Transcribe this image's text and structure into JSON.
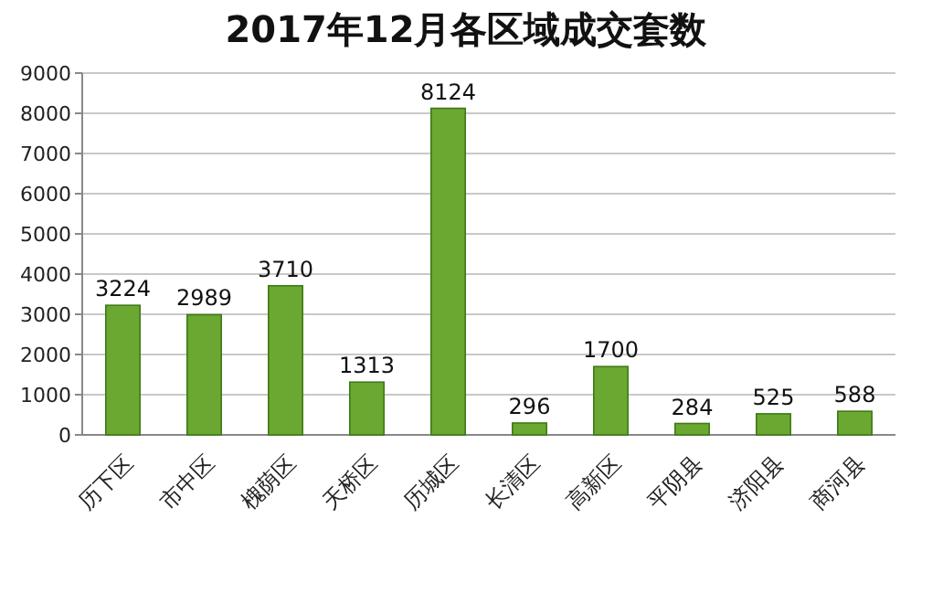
{
  "chart_data": {
    "type": "bar",
    "title": "2017年12月各区域成交套数",
    "categories": [
      "历下区",
      "市中区",
      "槐荫区",
      "天桥区",
      "历城区",
      "长清区",
      "高新区",
      "平阴县",
      "济阳县",
      "商河县"
    ],
    "values": [
      3224,
      2989,
      3710,
      1313,
      8124,
      296,
      1700,
      284,
      525,
      588
    ],
    "color": "#6aa832",
    "ylim": [
      0,
      9000
    ],
    "yticks": [
      0,
      1000,
      2000,
      3000,
      4000,
      5000,
      6000,
      7000,
      8000,
      9000
    ],
    "grid": "y",
    "data_labels": true
  }
}
